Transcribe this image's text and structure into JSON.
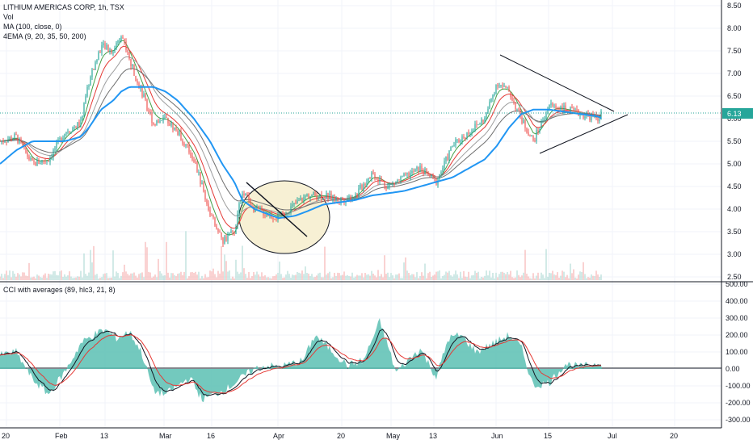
{
  "legend": {
    "line1": "LITHIUM AMERICAS CORP, 1h, TSX",
    "line2": "Vol",
    "line3": "MA (100, close, 0)",
    "line4": "4EMA (9, 20, 35, 50, 200)",
    "cci": "CCI with averages (89, hlc3, 21, 8)"
  },
  "last_price": "6.13",
  "colors": {
    "up": "#26a69a",
    "down": "#ef5350",
    "ma": "#2196f3",
    "ema_red": "#e53935",
    "ema_green": "#43a047",
    "ema_gray": "#9e9e9e",
    "cci_fill": "#5bbfb3",
    "circle_fill": "#f7f0d4"
  },
  "chart_data": [
    {
      "type": "line",
      "name": "price",
      "y_ticks": [
        "8.50",
        "8.00",
        "7.50",
        "7.00",
        "6.50",
        "6.00",
        "5.50",
        "5.00",
        "4.50",
        "4.00",
        "3.50",
        "3.00",
        "2.50"
      ],
      "ylim": [
        2.5,
        8.5
      ],
      "x_ticks": [
        "20",
        "Feb",
        "13",
        "Mar",
        "16",
        "Apr",
        "20",
        "May",
        "13",
        "Jun",
        "15",
        "Jul",
        "20"
      ],
      "x": [
        0,
        20,
        40,
        60,
        80,
        100,
        110,
        125,
        140,
        150,
        160,
        175,
        190,
        205,
        220,
        240,
        260,
        275,
        290,
        300,
        315,
        330,
        345,
        365,
        380,
        400,
        420,
        440,
        460,
        480,
        500,
        520,
        540,
        560,
        580,
        600,
        615,
        630,
        645,
        660,
        680,
        700,
        720,
        740,
        745
      ],
      "close": [
        5.5,
        5.6,
        5.0,
        5.1,
        5.7,
        5.9,
        6.8,
        7.6,
        7.5,
        7.9,
        7.3,
        6.6,
        5.9,
        6.0,
        5.7,
        5.1,
        3.9,
        3.3,
        3.5,
        4.4,
        4.0,
        3.9,
        3.8,
        4.1,
        4.3,
        4.3,
        4.2,
        4.3,
        4.8,
        4.5,
        4.7,
        4.9,
        4.6,
        5.4,
        5.7,
        6.0,
        6.8,
        6.6,
        6.0,
        5.5,
        6.3,
        6.2,
        6.1,
        6.0,
        6.13
      ],
      "ma100": [
        5.0,
        5.3,
        5.5,
        5.5,
        5.5,
        5.6,
        5.8,
        6.2,
        6.4,
        6.6,
        6.7,
        6.7,
        6.7,
        6.6,
        6.4,
        6.0,
        5.5,
        5.0,
        4.6,
        4.2,
        4.0,
        3.9,
        3.8,
        3.85,
        3.95,
        4.1,
        4.15,
        4.2,
        4.3,
        4.35,
        4.4,
        4.5,
        4.6,
        4.7,
        4.9,
        5.1,
        5.4,
        5.8,
        6.1,
        6.2,
        6.2,
        6.15,
        6.1,
        6.05,
        6.0
      ]
    },
    {
      "type": "area",
      "name": "cci",
      "y_ticks": [
        "500.00",
        "400.00",
        "300.00",
        "200.00",
        "100.00",
        "0.00",
        "-100.00",
        "-200.00",
        "-300.00"
      ],
      "ylim": [
        -300,
        500
      ],
      "x": [
        0,
        20,
        40,
        60,
        80,
        100,
        115,
        130,
        145,
        160,
        175,
        190,
        205,
        220,
        235,
        250,
        265,
        280,
        300,
        315,
        330,
        345,
        360,
        375,
        390,
        410,
        430,
        450,
        470,
        480,
        490,
        505,
        520,
        540,
        555,
        570,
        590,
        610,
        630,
        645,
        660,
        680,
        700,
        720,
        745
      ],
      "values": [
        80,
        100,
        -60,
        -150,
        -20,
        150,
        200,
        230,
        180,
        220,
        100,
        -130,
        -150,
        -100,
        -50,
        -180,
        -150,
        -120,
        -50,
        0,
        20,
        10,
        30,
        50,
        200,
        110,
        20,
        50,
        280,
        140,
        -20,
        50,
        120,
        -50,
        180,
        200,
        100,
        150,
        200,
        130,
        -100,
        -80,
        30,
        10,
        40
      ]
    }
  ],
  "annotations": {
    "triangle": [
      [
        0,
        0
      ]
    ],
    "downtrend_line": true,
    "ellipse": true
  }
}
